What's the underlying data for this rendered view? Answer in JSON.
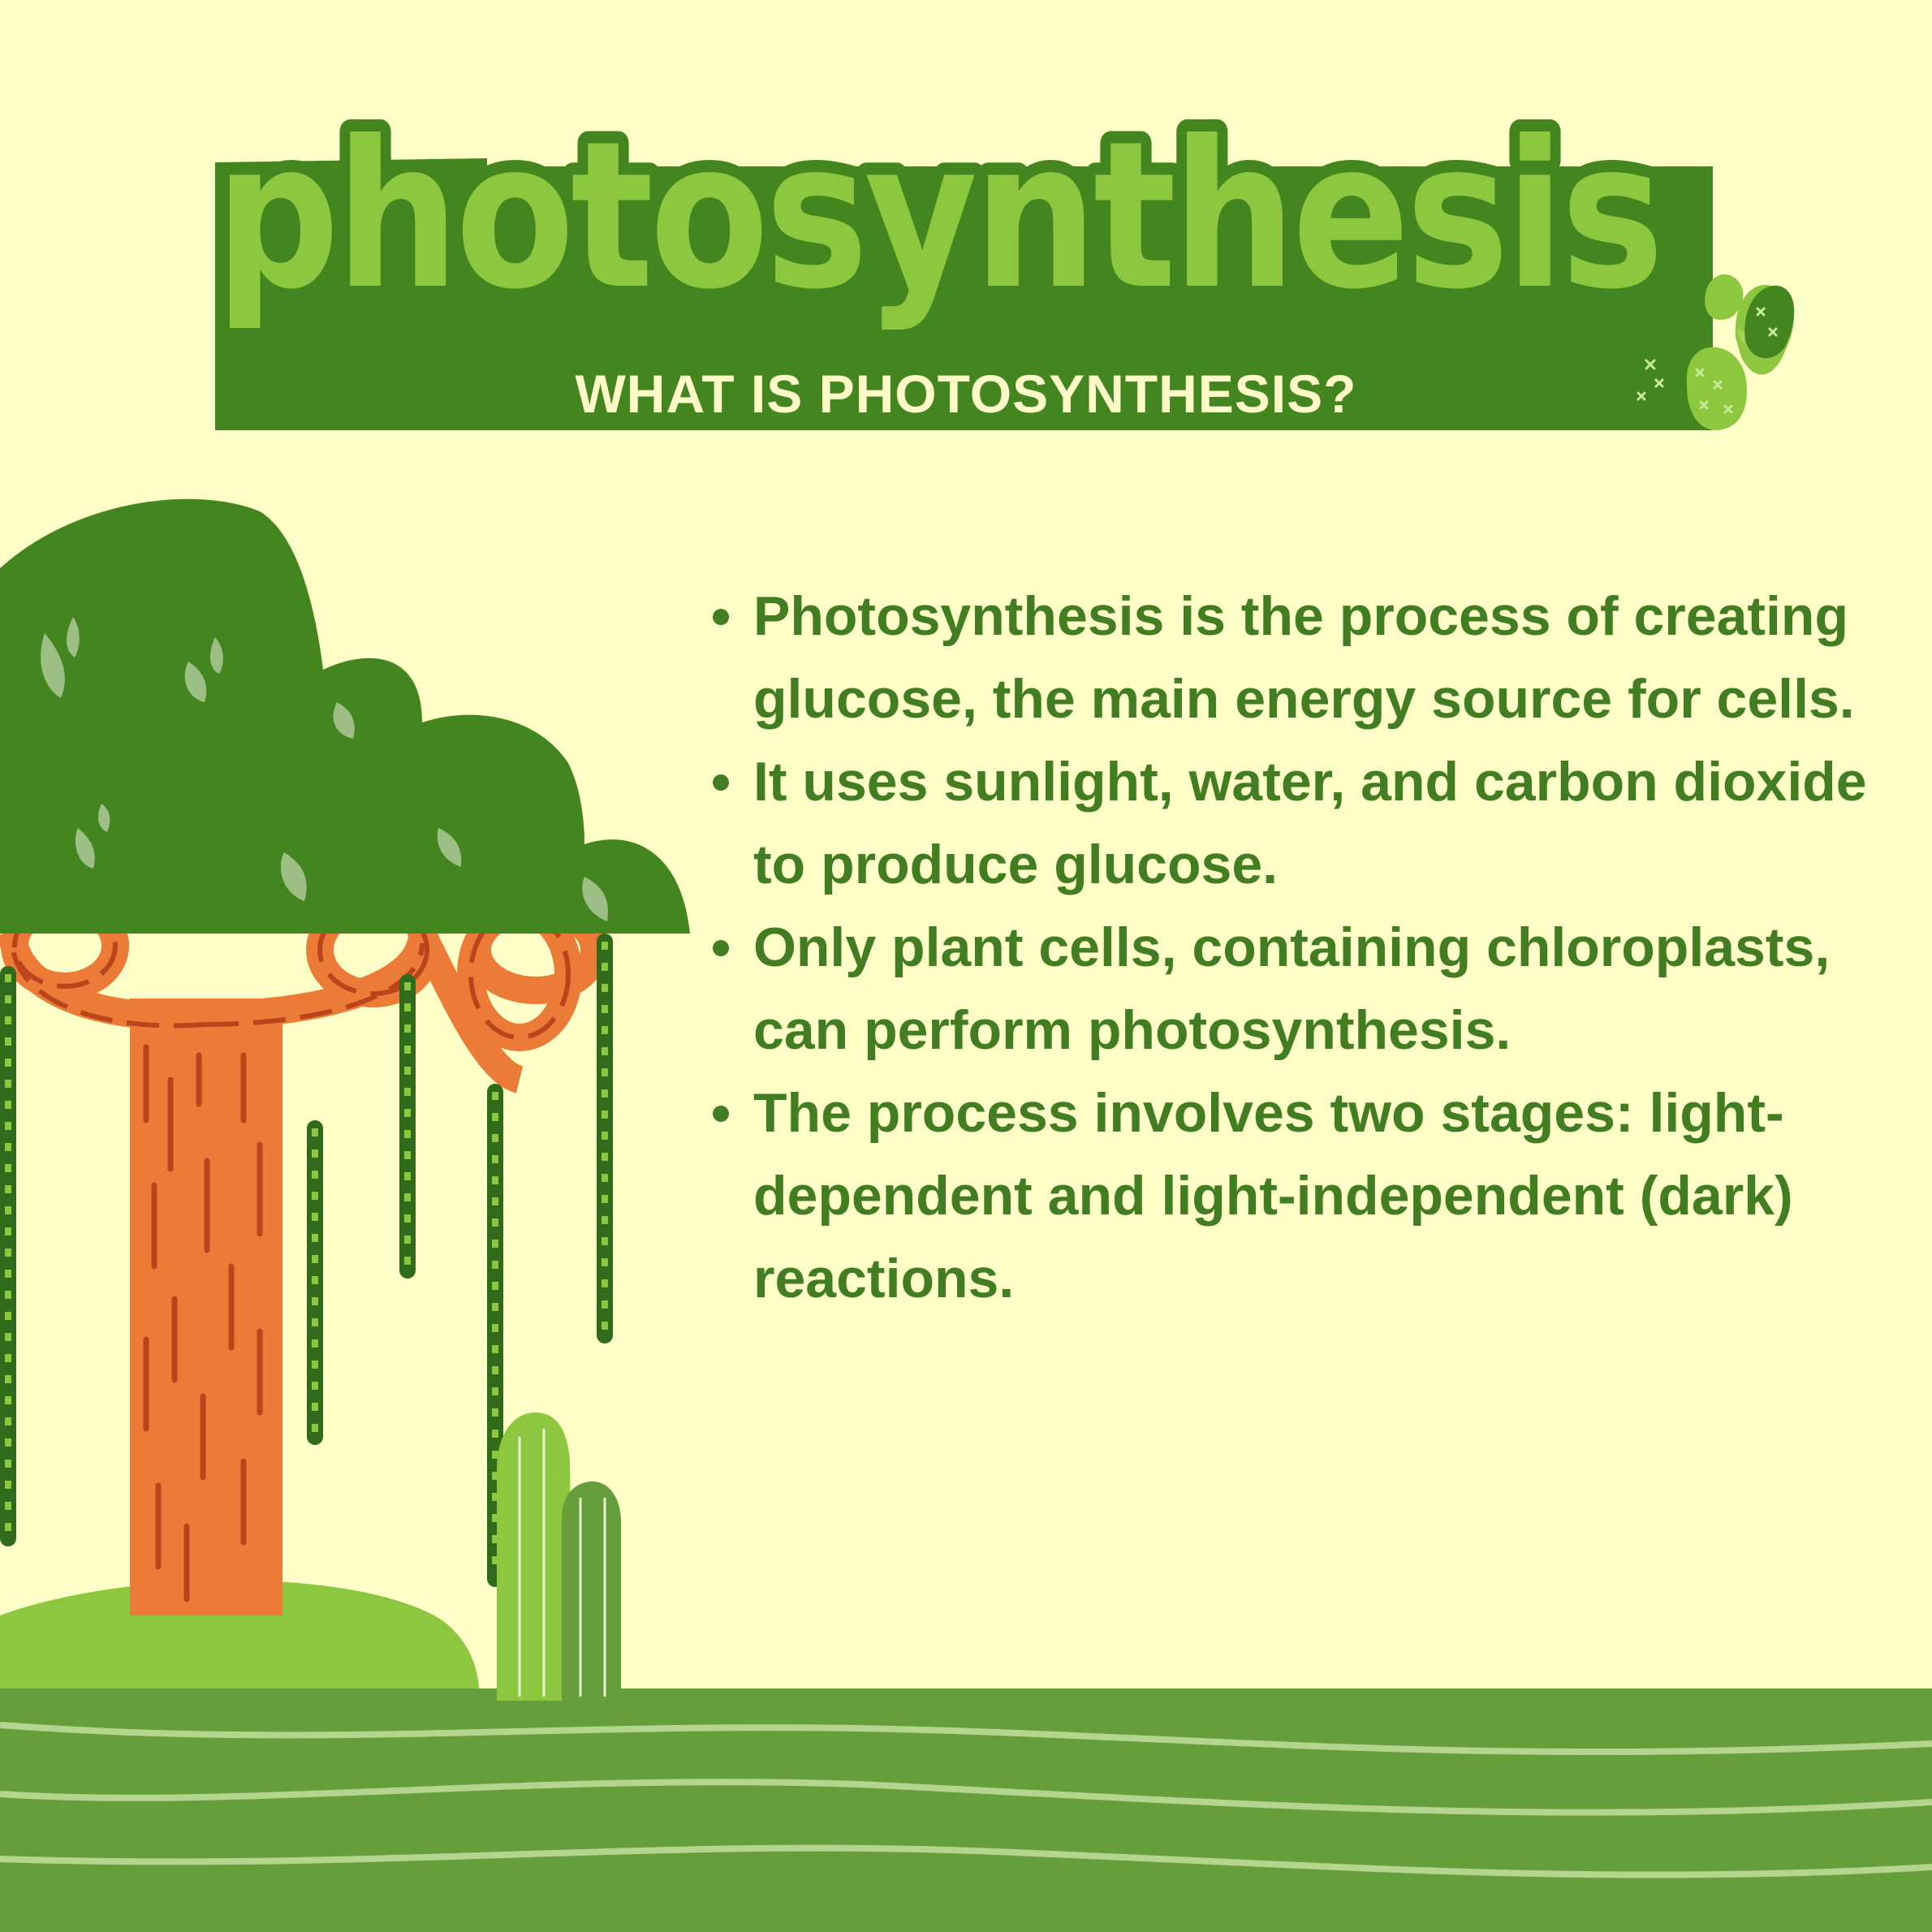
{
  "header": {
    "title": "photosynthesis",
    "subtitle": "WHAT IS PHOTOSYNTHESIS?"
  },
  "bullets": [
    "Photosynthesis is the process of creating glucose, the main energy source for cells.",
    "It uses sunlight, water, and carbon dioxide to produce glucose.",
    "Only plant cells, containing chloroplasts, can perform photosynthesis.",
    "The process involves two stages: light-dependent and light-independent (dark) reactions."
  ],
  "colors": {
    "background": "#ffffc8",
    "dark_green": "#43861f",
    "light_green": "#8dc63f",
    "ground_green": "#669e3c",
    "trunk_orange": "#ed7b38"
  },
  "icons": [
    "tree-illustration",
    "cactus-illustration",
    "ground-stripes"
  ]
}
